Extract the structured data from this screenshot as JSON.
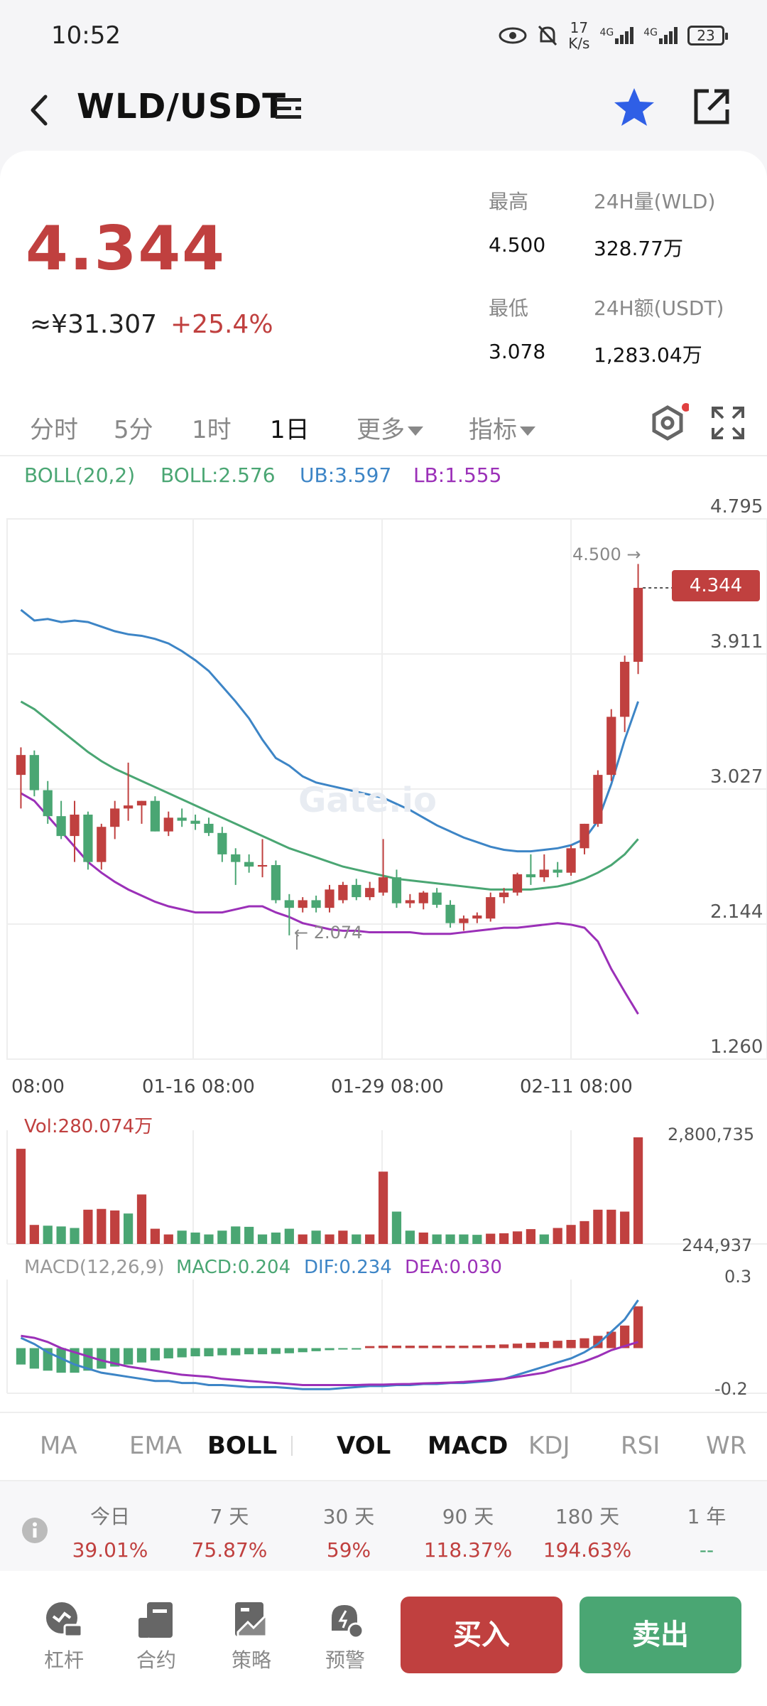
{
  "status": {
    "time": "10:52",
    "speed_value": "17",
    "speed_unit": "K/s",
    "net1": "4G",
    "net2": "4G",
    "battery": "23"
  },
  "header": {
    "title": "WLD/USDT"
  },
  "ticker": {
    "price": "4.344",
    "cny": "≈¥31.307",
    "change": "+25.4%",
    "high_label": "最高",
    "high_value": "4.500",
    "low_label": "最低",
    "low_value": "3.078",
    "vol_label": "24H量(WLD)",
    "vol_value": "328.77万",
    "amt_label": "24H额(USDT)",
    "amt_value": "1,283.04万"
  },
  "timeframes": [
    "分时",
    "5分",
    "1时",
    "1日",
    "更多",
    "指标"
  ],
  "timeframe_active_index": 3,
  "boll_legend": {
    "name": "BOLL(20,2)",
    "mid": "BOLL:2.576",
    "ub": "UB:3.597",
    "lb": "LB:1.555"
  },
  "watermark": "Gate.io",
  "vol_legend": "Vol:280.074万",
  "macd_legend": {
    "name": "MACD(12,26,9)",
    "macd": "MACD:0.204",
    "dif": "DIF:0.234",
    "dea": "DEA:0.030"
  },
  "colors": {
    "up": "#c0403f",
    "down": "#4aa673",
    "ub": "#3d85c6",
    "mid": "#4aa673",
    "lb": "#9b30b8",
    "macd_dif": "#3d85c6",
    "macd_dea": "#9b30b8"
  },
  "chart_data": [
    {
      "type": "candlestick",
      "title": "",
      "y_ticks": [
        "4.795",
        "3.911",
        "3.027",
        "2.144",
        "1.260"
      ],
      "ylim": [
        1.26,
        4.795
      ],
      "x_ticks": [
        "08:00",
        "01-16 08:00",
        "01-29 08:00",
        "02-11 08:00"
      ],
      "last_price_label": "4.344",
      "max_label": "4.500 →",
      "min_label": "← 2.074",
      "candles": [
        {
          "o": 3.12,
          "h": 3.3,
          "l": 2.9,
          "c": 3.25
        },
        {
          "o": 3.25,
          "h": 3.28,
          "l": 2.98,
          "c": 3.02
        },
        {
          "o": 3.02,
          "h": 3.08,
          "l": 2.8,
          "c": 2.85
        },
        {
          "o": 2.85,
          "h": 2.95,
          "l": 2.7,
          "c": 2.72
        },
        {
          "o": 2.72,
          "h": 2.95,
          "l": 2.55,
          "c": 2.86
        },
        {
          "o": 2.86,
          "h": 2.88,
          "l": 2.5,
          "c": 2.55
        },
        {
          "o": 2.55,
          "h": 2.8,
          "l": 2.5,
          "c": 2.78
        },
        {
          "o": 2.78,
          "h": 2.95,
          "l": 2.7,
          "c": 2.9
        },
        {
          "o": 2.9,
          "h": 3.2,
          "l": 2.82,
          "c": 2.92
        },
        {
          "o": 2.92,
          "h": 2.95,
          "l": 2.8,
          "c": 2.95
        },
        {
          "o": 2.95,
          "h": 2.98,
          "l": 2.75,
          "c": 2.75
        },
        {
          "o": 2.75,
          "h": 2.88,
          "l": 2.72,
          "c": 2.84
        },
        {
          "o": 2.84,
          "h": 2.9,
          "l": 2.78,
          "c": 2.82
        },
        {
          "o": 2.82,
          "h": 2.86,
          "l": 2.76,
          "c": 2.8
        },
        {
          "o": 2.8,
          "h": 2.84,
          "l": 2.72,
          "c": 2.74
        },
        {
          "o": 2.74,
          "h": 2.78,
          "l": 2.55,
          "c": 2.6
        },
        {
          "o": 2.6,
          "h": 2.64,
          "l": 2.4,
          "c": 2.55
        },
        {
          "o": 2.55,
          "h": 2.6,
          "l": 2.48,
          "c": 2.52
        },
        {
          "o": 2.52,
          "h": 2.7,
          "l": 2.45,
          "c": 2.53
        },
        {
          "o": 2.53,
          "h": 2.56,
          "l": 2.28,
          "c": 2.3
        },
        {
          "o": 2.3,
          "h": 2.34,
          "l": 2.07,
          "c": 2.25
        },
        {
          "o": 2.25,
          "h": 2.32,
          "l": 2.22,
          "c": 2.3
        },
        {
          "o": 2.3,
          "h": 2.33,
          "l": 2.22,
          "c": 2.25
        },
        {
          "o": 2.25,
          "h": 2.4,
          "l": 2.22,
          "c": 2.37
        },
        {
          "o": 2.3,
          "h": 2.42,
          "l": 2.28,
          "c": 2.4
        },
        {
          "o": 2.4,
          "h": 2.44,
          "l": 2.3,
          "c": 2.32
        },
        {
          "o": 2.32,
          "h": 2.42,
          "l": 2.3,
          "c": 2.38
        },
        {
          "o": 2.35,
          "h": 2.7,
          "l": 2.33,
          "c": 2.45
        },
        {
          "o": 2.45,
          "h": 2.5,
          "l": 2.25,
          "c": 2.28
        },
        {
          "o": 2.28,
          "h": 2.34,
          "l": 2.25,
          "c": 2.3
        },
        {
          "o": 2.28,
          "h": 2.36,
          "l": 2.24,
          "c": 2.35
        },
        {
          "o": 2.35,
          "h": 2.38,
          "l": 2.25,
          "c": 2.27
        },
        {
          "o": 2.27,
          "h": 2.3,
          "l": 2.12,
          "c": 2.15
        },
        {
          "o": 2.15,
          "h": 2.2,
          "l": 2.1,
          "c": 2.18
        },
        {
          "o": 2.18,
          "h": 2.22,
          "l": 2.15,
          "c": 2.2
        },
        {
          "o": 2.18,
          "h": 2.35,
          "l": 2.16,
          "c": 2.32
        },
        {
          "o": 2.32,
          "h": 2.38,
          "l": 2.28,
          "c": 2.35
        },
        {
          "o": 2.35,
          "h": 2.48,
          "l": 2.33,
          "c": 2.47
        },
        {
          "o": 2.47,
          "h": 2.6,
          "l": 2.4,
          "c": 2.45
        },
        {
          "o": 2.45,
          "h": 2.6,
          "l": 2.42,
          "c": 2.5
        },
        {
          "o": 2.5,
          "h": 2.55,
          "l": 2.45,
          "c": 2.48
        },
        {
          "o": 2.48,
          "h": 2.66,
          "l": 2.46,
          "c": 2.64
        },
        {
          "o": 2.64,
          "h": 2.8,
          "l": 2.6,
          "c": 2.8
        },
        {
          "o": 2.8,
          "h": 3.15,
          "l": 2.78,
          "c": 3.12
        },
        {
          "o": 3.12,
          "h": 3.55,
          "l": 3.08,
          "c": 3.5
        },
        {
          "o": 3.5,
          "h": 3.9,
          "l": 3.4,
          "c": 3.86
        },
        {
          "o": 3.86,
          "h": 4.5,
          "l": 3.78,
          "c": 4.344
        }
      ],
      "ub": [
        4.2,
        4.13,
        4.14,
        4.12,
        4.13,
        4.12,
        4.09,
        4.06,
        4.04,
        4.03,
        4.01,
        3.98,
        3.93,
        3.87,
        3.8,
        3.7,
        3.6,
        3.49,
        3.35,
        3.23,
        3.18,
        3.11,
        3.07,
        3.05,
        3.03,
        3.01,
        2.99,
        2.97,
        2.93,
        2.89,
        2.84,
        2.79,
        2.75,
        2.71,
        2.68,
        2.65,
        2.63,
        2.62,
        2.62,
        2.63,
        2.64,
        2.66,
        2.7,
        2.82,
        3.06,
        3.35,
        3.6
      ],
      "mid": [
        3.6,
        3.55,
        3.48,
        3.41,
        3.34,
        3.27,
        3.21,
        3.16,
        3.12,
        3.08,
        3.04,
        3.0,
        2.96,
        2.92,
        2.88,
        2.84,
        2.8,
        2.76,
        2.72,
        2.68,
        2.64,
        2.61,
        2.58,
        2.55,
        2.52,
        2.5,
        2.48,
        2.46,
        2.44,
        2.43,
        2.42,
        2.41,
        2.4,
        2.39,
        2.38,
        2.37,
        2.37,
        2.37,
        2.37,
        2.38,
        2.39,
        2.41,
        2.44,
        2.48,
        2.53,
        2.6,
        2.7
      ],
      "lb": [
        3.0,
        2.95,
        2.85,
        2.75,
        2.65,
        2.55,
        2.48,
        2.42,
        2.37,
        2.33,
        2.29,
        2.26,
        2.24,
        2.22,
        2.22,
        2.22,
        2.24,
        2.26,
        2.26,
        2.22,
        2.19,
        2.15,
        2.13,
        2.11,
        2.1,
        2.1,
        2.09,
        2.09,
        2.09,
        2.09,
        2.08,
        2.08,
        2.08,
        2.09,
        2.1,
        2.11,
        2.12,
        2.12,
        2.13,
        2.14,
        2.15,
        2.14,
        2.12,
        2.03,
        1.85,
        1.7,
        1.555
      ]
    },
    {
      "type": "bar",
      "title": "Vol",
      "y_ticks": [
        "2,800,735",
        "244,937"
      ],
      "ylim": [
        244937,
        2800735
      ],
      "values": [
        2500000,
        500000,
        480000,
        460000,
        420000,
        900000,
        920000,
        880000,
        800000,
        1300000,
        400000,
        250000,
        350000,
        300000,
        250000,
        350000,
        460000,
        450000,
        250000,
        300000,
        400000,
        250000,
        350000,
        250000,
        350000,
        250000,
        250000,
        1900000,
        850000,
        350000,
        300000,
        250000,
        250000,
        250000,
        240000,
        270000,
        280000,
        330000,
        390000,
        250000,
        420000,
        500000,
        600000,
        900000,
        900000,
        850000,
        2800735
      ],
      "up": [
        true,
        true,
        false,
        false,
        false,
        true,
        true,
        true,
        false,
        true,
        true,
        true,
        false,
        false,
        false,
        false,
        false,
        false,
        false,
        false,
        false,
        true,
        false,
        true,
        true,
        false,
        true,
        true,
        false,
        false,
        true,
        false,
        false,
        false,
        false,
        true,
        true,
        true,
        true,
        false,
        true,
        true,
        true,
        true,
        true,
        true,
        true
      ]
    },
    {
      "type": "macd",
      "title": "MACD",
      "y_ticks": [
        "0.3",
        "-0.2"
      ],
      "ylim": [
        -0.22,
        0.3
      ],
      "hist": [
        -0.08,
        -0.1,
        -0.11,
        -0.12,
        -0.12,
        -0.11,
        -0.1,
        -0.09,
        -0.08,
        -0.07,
        -0.06,
        -0.05,
        -0.045,
        -0.04,
        -0.04,
        -0.035,
        -0.035,
        -0.03,
        -0.03,
        -0.028,
        -0.025,
        -0.02,
        -0.015,
        -0.01,
        -0.005,
        -0.002,
        0.01,
        0.012,
        0.012,
        0.012,
        0.012,
        0.012,
        0.012,
        0.012,
        0.013,
        0.015,
        0.018,
        0.022,
        0.026,
        0.03,
        0.036,
        0.04,
        0.048,
        0.06,
        0.08,
        0.11,
        0.204
      ],
      "dif": [
        0.05,
        0.02,
        -0.02,
        -0.05,
        -0.08,
        -0.1,
        -0.12,
        -0.13,
        -0.14,
        -0.15,
        -0.16,
        -0.16,
        -0.17,
        -0.17,
        -0.18,
        -0.18,
        -0.185,
        -0.19,
        -0.19,
        -0.19,
        -0.195,
        -0.2,
        -0.2,
        -0.2,
        -0.195,
        -0.19,
        -0.185,
        -0.185,
        -0.18,
        -0.18,
        -0.175,
        -0.175,
        -0.17,
        -0.17,
        -0.165,
        -0.16,
        -0.15,
        -0.13,
        -0.11,
        -0.09,
        -0.07,
        -0.05,
        -0.02,
        0.02,
        0.08,
        0.14,
        0.234
      ],
      "dea": [
        0.06,
        0.05,
        0.03,
        0.0,
        -0.02,
        -0.04,
        -0.06,
        -0.075,
        -0.09,
        -0.1,
        -0.11,
        -0.12,
        -0.13,
        -0.135,
        -0.14,
        -0.15,
        -0.155,
        -0.16,
        -0.165,
        -0.17,
        -0.175,
        -0.18,
        -0.18,
        -0.18,
        -0.18,
        -0.18,
        -0.178,
        -0.178,
        -0.176,
        -0.175,
        -0.172,
        -0.17,
        -0.168,
        -0.165,
        -0.16,
        -0.155,
        -0.15,
        -0.14,
        -0.13,
        -0.12,
        -0.1,
        -0.085,
        -0.065,
        -0.04,
        -0.01,
        0.01,
        0.03
      ]
    }
  ],
  "indicator_tabs": [
    "MA",
    "EMA",
    "BOLL",
    "VOL",
    "MACD",
    "KDJ",
    "RSI",
    "WR"
  ],
  "indicator_on": [
    "BOLL",
    "VOL",
    "MACD"
  ],
  "performance": [
    {
      "label": "今日",
      "value": "39.01%"
    },
    {
      "label": "7 天",
      "value": "75.87%"
    },
    {
      "label": "30 天",
      "value": "59%"
    },
    {
      "label": "90 天",
      "value": "118.37%"
    },
    {
      "label": "180 天",
      "value": "194.63%"
    },
    {
      "label": "1 年",
      "value": "--"
    }
  ],
  "nav": [
    {
      "label": "杠杆",
      "icon": "leverage-icon"
    },
    {
      "label": "合约",
      "icon": "contract-icon"
    },
    {
      "label": "策略",
      "icon": "strategy-icon"
    },
    {
      "label": "预警",
      "icon": "alert-icon"
    }
  ],
  "buttons": {
    "buy": "买入",
    "sell": "卖出"
  }
}
